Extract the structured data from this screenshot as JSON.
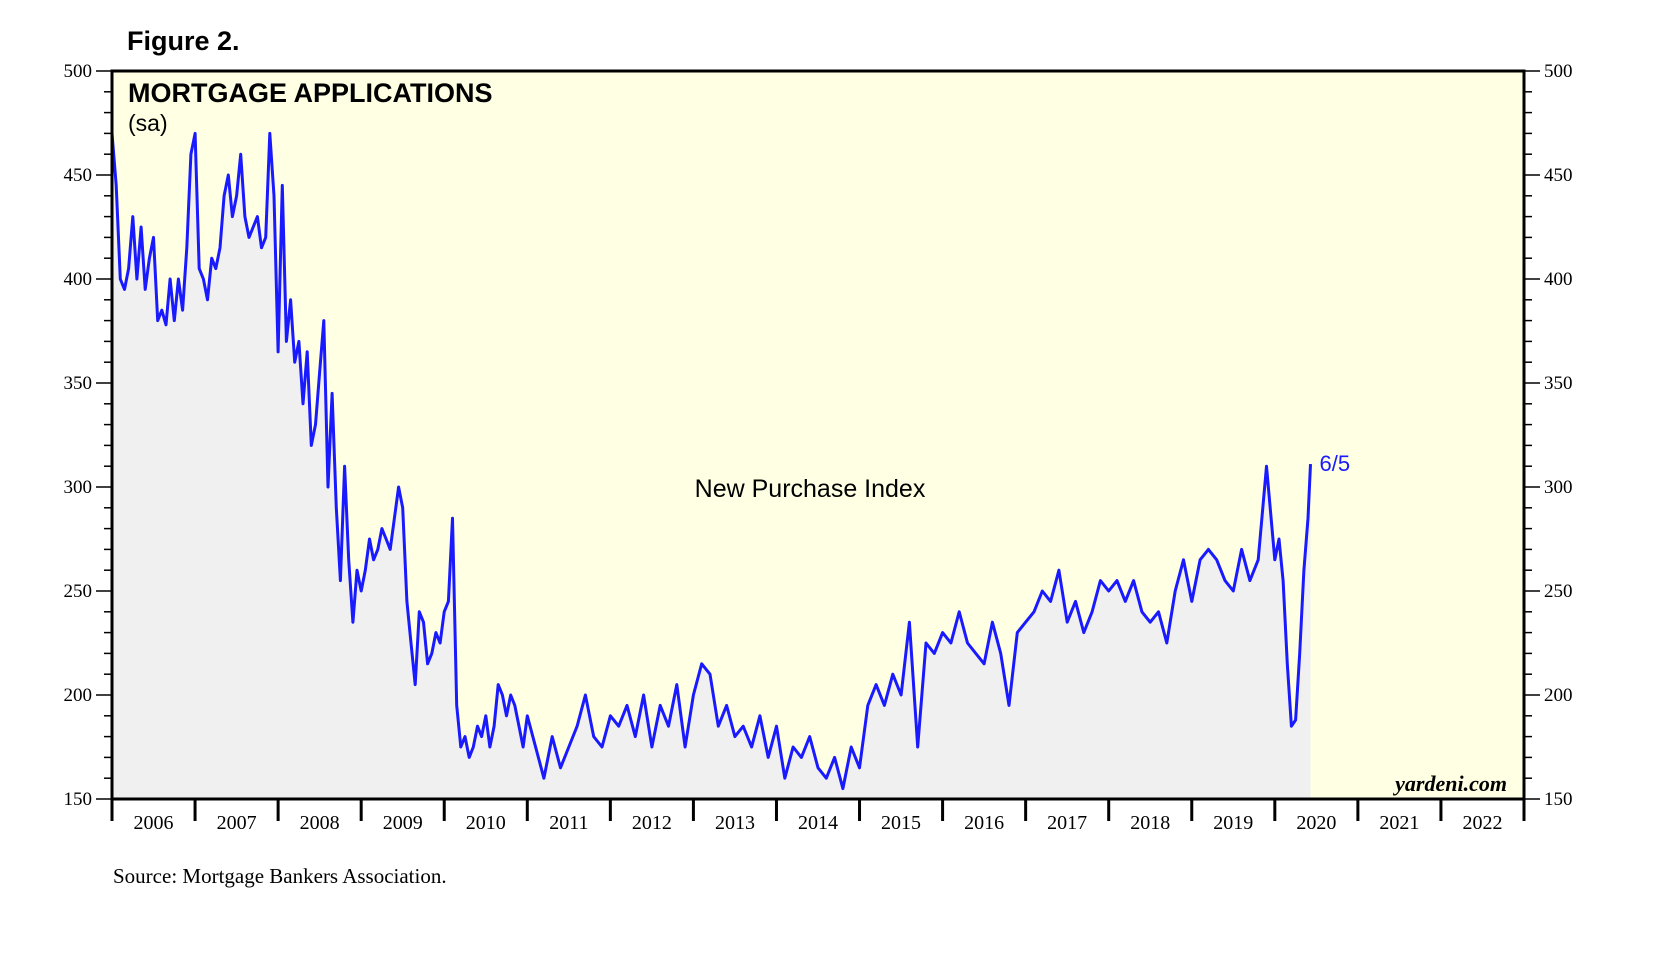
{
  "figure_label": "Figure 2.",
  "source": "Source:  Mortgage Bankers Association.",
  "watermark": "yardeni.com",
  "colors": {
    "plot_bg": "#ffffe3",
    "area_fill": "#f0f0f0",
    "line": "#1a1aff",
    "frame": "#000000"
  },
  "chart_data": {
    "type": "line",
    "title": "MORTGAGE APPLICATIONS",
    "subtitle": "(sa)",
    "annotation": "New Purchase Index",
    "last_label": "6/5",
    "ylim": [
      150,
      500
    ],
    "yticks": [
      150,
      200,
      250,
      300,
      350,
      400,
      450,
      500
    ],
    "xlim": [
      2006,
      2023
    ],
    "year_labels": [
      "2006",
      "2007",
      "2008",
      "2009",
      "2010",
      "2011",
      "2012",
      "2013",
      "2014",
      "2015",
      "2016",
      "2017",
      "2018",
      "2019",
      "2020",
      "2021",
      "2022"
    ],
    "grid": false,
    "series": [
      {
        "name": "New Purchase Index",
        "x": [
          2006.0,
          2006.05,
          2006.1,
          2006.15,
          2006.2,
          2006.25,
          2006.3,
          2006.35,
          2006.4,
          2006.45,
          2006.5,
          2006.55,
          2006.6,
          2006.65,
          2006.7,
          2006.75,
          2006.8,
          2006.85,
          2006.9,
          2006.95,
          2007.0,
          2007.05,
          2007.1,
          2007.15,
          2007.2,
          2007.25,
          2007.3,
          2007.35,
          2007.4,
          2007.45,
          2007.5,
          2007.55,
          2007.6,
          2007.65,
          2007.7,
          2007.75,
          2007.8,
          2007.85,
          2007.9,
          2007.95,
          2008.0,
          2008.05,
          2008.1,
          2008.15,
          2008.2,
          2008.25,
          2008.3,
          2008.35,
          2008.4,
          2008.45,
          2008.5,
          2008.55,
          2008.6,
          2008.65,
          2008.7,
          2008.75,
          2008.8,
          2008.85,
          2008.9,
          2008.95,
          2009.0,
          2009.05,
          2009.1,
          2009.15,
          2009.2,
          2009.25,
          2009.3,
          2009.35,
          2009.4,
          2009.45,
          2009.5,
          2009.55,
          2009.6,
          2009.65,
          2009.7,
          2009.75,
          2009.8,
          2009.85,
          2009.9,
          2009.95,
          2010.0,
          2010.05,
          2010.1,
          2010.15,
          2010.2,
          2010.25,
          2010.3,
          2010.35,
          2010.4,
          2010.45,
          2010.5,
          2010.55,
          2010.6,
          2010.65,
          2010.7,
          2010.75,
          2010.8,
          2010.85,
          2010.9,
          2010.95,
          2011.0,
          2011.1,
          2011.2,
          2011.3,
          2011.4,
          2011.5,
          2011.6,
          2011.7,
          2011.8,
          2011.9,
          2012.0,
          2012.1,
          2012.2,
          2012.3,
          2012.4,
          2012.5,
          2012.6,
          2012.7,
          2012.8,
          2012.9,
          2013.0,
          2013.1,
          2013.2,
          2013.3,
          2013.4,
          2013.5,
          2013.6,
          2013.7,
          2013.8,
          2013.9,
          2014.0,
          2014.1,
          2014.2,
          2014.3,
          2014.4,
          2014.5,
          2014.6,
          2014.7,
          2014.8,
          2014.9,
          2015.0,
          2015.1,
          2015.2,
          2015.3,
          2015.4,
          2015.5,
          2015.6,
          2015.7,
          2015.8,
          2015.9,
          2016.0,
          2016.1,
          2016.2,
          2016.3,
          2016.4,
          2016.5,
          2016.6,
          2016.7,
          2016.8,
          2016.9,
          2017.0,
          2017.1,
          2017.2,
          2017.3,
          2017.4,
          2017.5,
          2017.6,
          2017.7,
          2017.8,
          2017.9,
          2018.0,
          2018.1,
          2018.2,
          2018.3,
          2018.4,
          2018.5,
          2018.6,
          2018.7,
          2018.8,
          2018.9,
          2019.0,
          2019.1,
          2019.2,
          2019.3,
          2019.4,
          2019.5,
          2019.6,
          2019.7,
          2019.8,
          2019.9,
          2020.0,
          2020.05,
          2020.1,
          2020.15,
          2020.2,
          2020.25,
          2020.3,
          2020.35,
          2020.4,
          2020.43
        ],
        "values": [
          470,
          445,
          400,
          395,
          405,
          430,
          400,
          425,
          395,
          410,
          420,
          380,
          385,
          378,
          400,
          380,
          400,
          385,
          415,
          460,
          470,
          405,
          400,
          390,
          410,
          405,
          415,
          440,
          450,
          430,
          440,
          460,
          430,
          420,
          425,
          430,
          415,
          420,
          470,
          440,
          365,
          445,
          370,
          390,
          360,
          370,
          340,
          365,
          320,
          330,
          355,
          380,
          300,
          345,
          290,
          255,
          310,
          265,
          235,
          260,
          250,
          260,
          275,
          265,
          270,
          280,
          275,
          270,
          285,
          300,
          290,
          245,
          225,
          205,
          240,
          235,
          215,
          220,
          230,
          225,
          240,
          245,
          285,
          195,
          175,
          180,
          170,
          175,
          185,
          180,
          190,
          175,
          185,
          205,
          200,
          190,
          200,
          195,
          185,
          175,
          190,
          175,
          160,
          180,
          165,
          175,
          185,
          200,
          180,
          175,
          190,
          185,
          195,
          180,
          200,
          175,
          195,
          185,
          205,
          175,
          200,
          215,
          210,
          185,
          195,
          180,
          185,
          175,
          190,
          170,
          185,
          160,
          175,
          170,
          180,
          165,
          160,
          170,
          155,
          175,
          165,
          195,
          205,
          195,
          210,
          200,
          235,
          175,
          225,
          220,
          230,
          225,
          240,
          225,
          220,
          215,
          235,
          220,
          195,
          230,
          235,
          240,
          250,
          245,
          260,
          235,
          245,
          230,
          240,
          255,
          250,
          255,
          245,
          255,
          240,
          235,
          240,
          225,
          250,
          265,
          245,
          265,
          270,
          265,
          255,
          250,
          270,
          255,
          265,
          310,
          265,
          275,
          255,
          215,
          185,
          188,
          220,
          260,
          285,
          311
        ]
      }
    ]
  }
}
